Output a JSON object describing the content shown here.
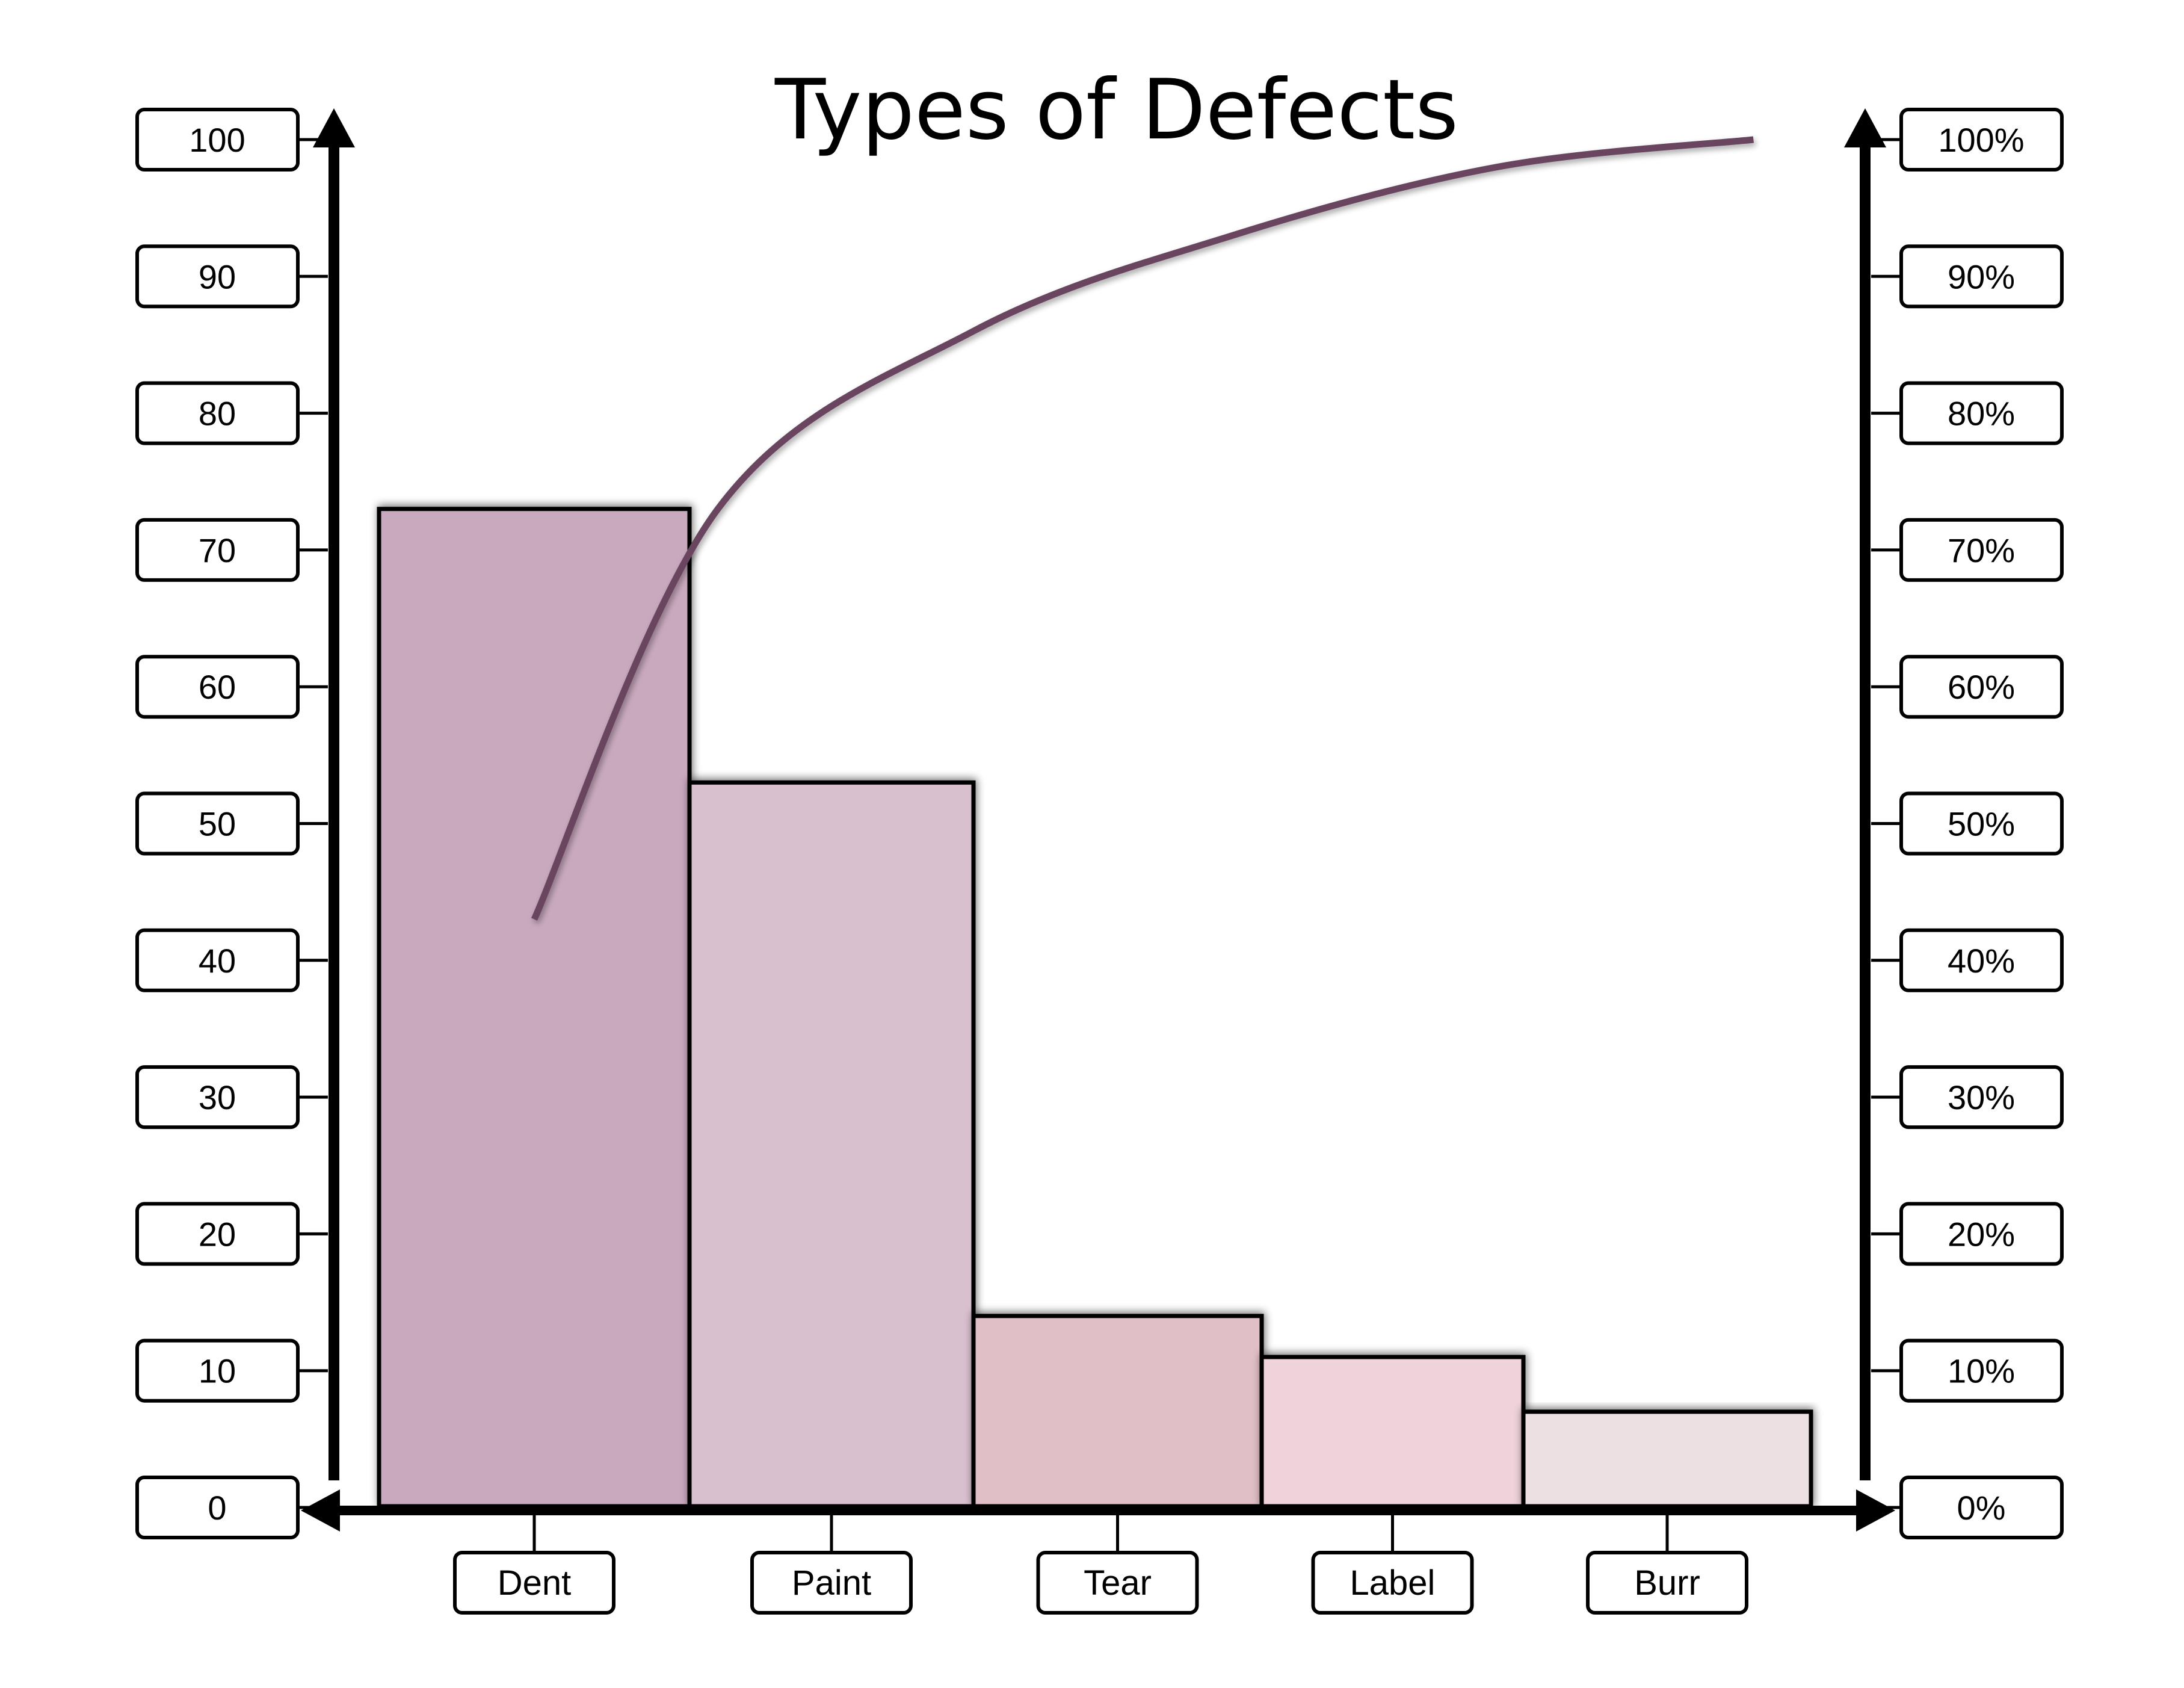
{
  "chart_data": {
    "type": "bar",
    "title": "Types of Defects",
    "xlabel": "",
    "ylabel": "",
    "categories": [
      "Dent",
      "Paint",
      "Tear",
      "Label",
      "Burr"
    ],
    "values": [
      73,
      53,
      14,
      11,
      7
    ],
    "ylim": [
      0,
      100
    ],
    "y_ticks": [
      "0",
      "10",
      "20",
      "30",
      "40",
      "50",
      "60",
      "70",
      "80",
      "90",
      "100"
    ],
    "y2_ticks": [
      "0%",
      "10%",
      "20%",
      "30%",
      "40%",
      "50%",
      "60%",
      "70%",
      "80%",
      "90%",
      "100%"
    ],
    "y2lim": [
      0,
      100
    ],
    "cumulative_line": {
      "x": [
        0.5,
        1.1,
        2.0,
        2.9,
        3.9,
        4.8
      ],
      "y": [
        43,
        73,
        86,
        93,
        98,
        100
      ]
    },
    "bar_colors": [
      "#c9a9be",
      "#d9c0cf",
      "#e0c0c6",
      "#efd2da",
      "#ede0e3"
    ],
    "line_color": "#6b4560",
    "grid": false,
    "legend": "none"
  }
}
